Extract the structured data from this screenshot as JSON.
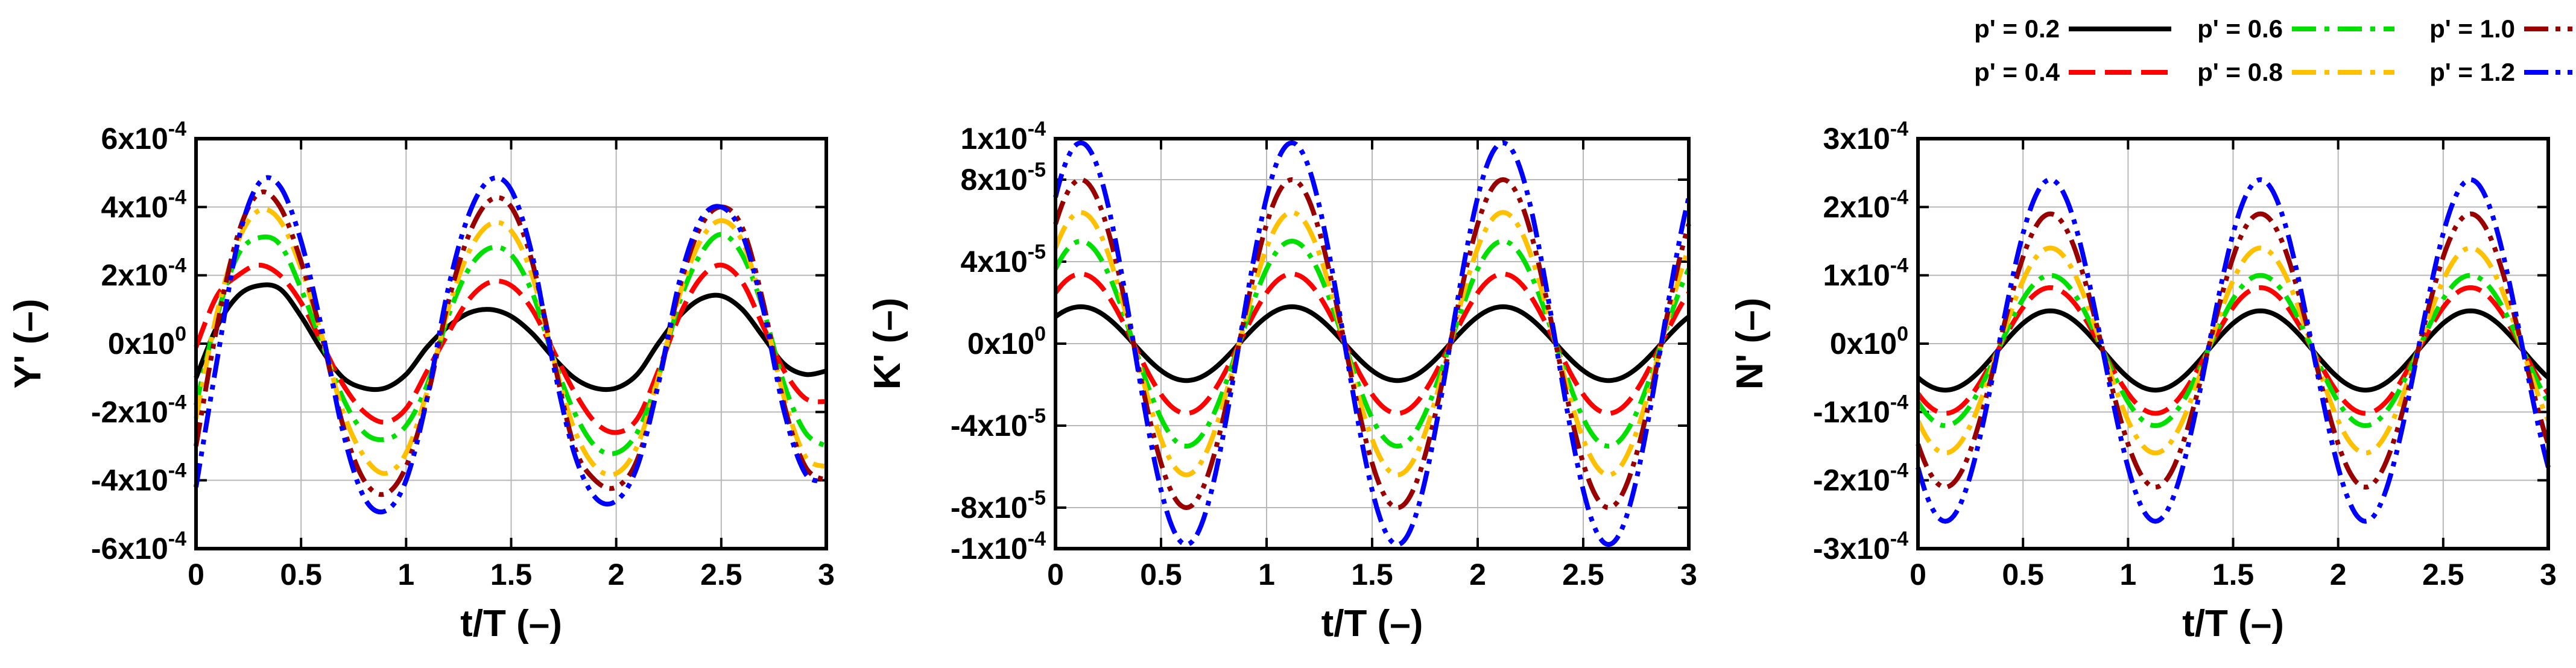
{
  "legend": {
    "placement": "top-right",
    "entries": [
      {
        "label": "p' = 0.2",
        "color": "#000000",
        "dash": "solid"
      },
      {
        "label": "p' = 0.4",
        "color": "#ff0000",
        "dash": "dash"
      },
      {
        "label": "p' = 0.6",
        "color": "#00e000",
        "dash": "dashdot"
      },
      {
        "label": "p' = 0.8",
        "color": "#ffc000",
        "dash": "dashdot"
      },
      {
        "label": "p' = 1.0",
        "color": "#990000",
        "dash": "dashdotdot"
      },
      {
        "label": "p' = 1.2",
        "color": "#0000ff",
        "dash": "dashdotdot"
      }
    ]
  },
  "chart_data": [
    {
      "type": "line",
      "xlabel": "t/T (–)",
      "ylabel": "Y' (–)",
      "xlim": [
        0,
        3
      ],
      "ylim": [
        -0.0006,
        0.0006
      ],
      "grid": true,
      "x_ticks": [
        0,
        0.5,
        1,
        1.5,
        2,
        2.5,
        3
      ],
      "x_tick_labels": [
        "0",
        "0.5",
        "1",
        "1.5",
        "2",
        "2.5",
        "3"
      ],
      "y_ticks": [
        {
          "value": -0.0006,
          "mantissa": "-6x10",
          "exp": "-4"
        },
        {
          "value": -0.0004,
          "mantissa": "-4x10",
          "exp": "-4"
        },
        {
          "value": -0.0002,
          "mantissa": "-2x10",
          "exp": "-4"
        },
        {
          "value": 0,
          "mantissa": "0x10",
          "exp": "0"
        },
        {
          "value": 0.0002,
          "mantissa": "2x10",
          "exp": "-4"
        },
        {
          "value": 0.0004,
          "mantissa": "4x10",
          "exp": "-4"
        },
        {
          "value": 0.0006,
          "mantissa": "6x10",
          "exp": "-4"
        }
      ],
      "x": [
        0,
        0.1,
        0.2,
        0.3,
        0.4,
        0.5,
        0.6,
        0.7,
        0.8,
        0.9,
        1.0,
        1.1,
        1.2,
        1.3,
        1.4,
        1.5,
        1.6,
        1.7,
        1.8,
        1.9,
        2.0,
        2.1,
        2.2,
        2.3,
        2.4,
        2.5,
        2.6,
        2.7,
        2.8,
        2.9,
        3.0
      ],
      "series": [
        {
          "name": "p' = 0.2",
          "values": [
            -0.0001,
            5e-05,
            0.00014,
            0.00017,
            0.00016,
            8e-05,
            -2e-05,
            -0.0001,
            -0.00013,
            -0.00013,
            -9e-05,
            -1e-05,
            5e-05,
            9e-05,
            0.0001,
            8e-05,
            3e-05,
            -4e-05,
            -0.0001,
            -0.00013,
            -0.00013,
            -9e-05,
            0.0,
            8e-05,
            0.00013,
            0.00014,
            0.0001,
            2e-05,
            -6e-05,
            -9e-05,
            -8e-05
          ]
        },
        {
          "name": "p' = 0.4",
          "values": [
            -1e-05,
            0.00014,
            0.0002,
            0.00023,
            0.0002,
            0.00012,
            0.0,
            -0.00012,
            -0.0002,
            -0.00023,
            -0.00019,
            -8e-05,
            3e-05,
            0.00013,
            0.00018,
            0.00017,
            0.0001,
            -2e-05,
            -0.00014,
            -0.00023,
            -0.00026,
            -0.00022,
            -8e-05,
            8e-05,
            0.00019,
            0.00023,
            0.00018,
            5e-05,
            -8e-05,
            -0.00016,
            -0.00017
          ]
        },
        {
          "name": "p' = 0.6",
          "values": [
            -0.00018,
            8e-05,
            0.00026,
            0.00031,
            0.00029,
            0.00016,
            0.0,
            -0.00016,
            -0.00026,
            -0.00028,
            -0.00024,
            -0.00012,
            8e-05,
            0.00022,
            0.00028,
            0.00026,
            0.00015,
            -4e-05,
            -0.0002,
            -0.0003,
            -0.00032,
            -0.00026,
            -0.0001,
            0.00012,
            0.00026,
            0.00032,
            0.00026,
            0.0001,
            -0.00012,
            -0.00026,
            -0.0003
          ]
        },
        {
          "name": "p' = 0.8",
          "values": [
            -0.00022,
            9e-05,
            0.0003,
            0.00039,
            0.00036,
            0.00022,
            2e-05,
            -0.0002,
            -0.00033,
            -0.00038,
            -0.00032,
            -0.00014,
            0.0001,
            0.00027,
            0.00035,
            0.00033,
            0.0002,
            -4e-05,
            -0.00025,
            -0.00036,
            -0.00038,
            -0.0003,
            -0.0001,
            0.00014,
            0.0003,
            0.00036,
            0.0003,
            0.0001,
            -0.00016,
            -0.00033,
            -0.00036
          ]
        },
        {
          "name": "p' = 1.0",
          "values": [
            -0.0003,
            5e-05,
            0.00032,
            0.00044,
            0.0004,
            0.00024,
            2e-05,
            -0.00024,
            -0.0004,
            -0.00044,
            -0.00036,
            -0.00016,
            0.00012,
            0.00032,
            0.00042,
            0.0004,
            0.00024,
            -4e-05,
            -0.0003,
            -0.0004,
            -0.00042,
            -0.00034,
            -0.00012,
            0.00016,
            0.00034,
            0.0004,
            0.00034,
            0.00012,
            -0.00018,
            -0.00036,
            -0.0004
          ]
        },
        {
          "name": "p' = 1.2",
          "values": [
            -0.00042,
            -5e-05,
            0.0003,
            0.00047,
            0.00046,
            0.0003,
            4e-05,
            -0.00026,
            -0.00045,
            -0.00049,
            -0.0004,
            -0.00016,
            0.00016,
            0.00038,
            0.00048,
            0.00045,
            0.00026,
            -6e-05,
            -0.00032,
            -0.00045,
            -0.00046,
            -0.00036,
            -0.00012,
            0.00018,
            0.00036,
            0.0004,
            0.00032,
            0.0001,
            -0.0002,
            -0.00038,
            -0.0004
          ]
        }
      ]
    },
    {
      "type": "line",
      "xlabel": "t/T (–)",
      "ylabel": "K' (–)",
      "xlim": [
        0,
        3
      ],
      "ylim": [
        -0.0001,
        0.0001
      ],
      "grid": true,
      "x_ticks": [
        0,
        0.5,
        1,
        1.5,
        2,
        2.5,
        3
      ],
      "x_tick_labels": [
        "0",
        "0.5",
        "1",
        "1.5",
        "2",
        "2.5",
        "3"
      ],
      "y_ticks": [
        {
          "value": -0.0001,
          "mantissa": "-1x10",
          "exp": "-4"
        },
        {
          "value": -8e-05,
          "mantissa": "-8x10",
          "exp": "-5"
        },
        {
          "value": -4e-05,
          "mantissa": "-4x10",
          "exp": "-5"
        },
        {
          "value": 0,
          "mantissa": "0x10",
          "exp": "0"
        },
        {
          "value": 4e-05,
          "mantissa": "4x10",
          "exp": "-5"
        },
        {
          "value": 8e-05,
          "mantissa": "8x10",
          "exp": "-5"
        },
        {
          "value": 0.0001,
          "mantissa": "1x10",
          "exp": "-4"
        }
      ],
      "amplitudes": [
        1.8e-05,
        3.4e-05,
        5e-05,
        6.4e-05,
        8e-05,
        9.8e-05
      ],
      "phase_shift": 0.12,
      "series": [
        {
          "name": "p' = 0.2",
          "amplitude": 1.8e-05
        },
        {
          "name": "p' = 0.4",
          "amplitude": 3.4e-05
        },
        {
          "name": "p' = 0.6",
          "amplitude": 5e-05
        },
        {
          "name": "p' = 0.8",
          "amplitude": 6.4e-05
        },
        {
          "name": "p' = 1.0",
          "amplitude": 8e-05
        },
        {
          "name": "p' = 1.2",
          "amplitude": 9.8e-05
        }
      ]
    },
    {
      "type": "line",
      "xlabel": "t/T (–)",
      "ylabel": "N' (–)",
      "xlim": [
        0,
        3
      ],
      "ylim": [
        -0.0003,
        0.0003
      ],
      "grid": true,
      "x_ticks": [
        0,
        0.5,
        1,
        1.5,
        2,
        2.5,
        3
      ],
      "x_tick_labels": [
        "0",
        "0.5",
        "1",
        "1.5",
        "2",
        "2.5",
        "3"
      ],
      "y_ticks": [
        {
          "value": -0.0003,
          "mantissa": "-3x10",
          "exp": "-4"
        },
        {
          "value": -0.0002,
          "mantissa": "-2x10",
          "exp": "-4"
        },
        {
          "value": -0.0001,
          "mantissa": "-1x10",
          "exp": "-4"
        },
        {
          "value": 0,
          "mantissa": "0x10",
          "exp": "0"
        },
        {
          "value": 0.0001,
          "mantissa": "1x10",
          "exp": "-4"
        },
        {
          "value": 0.0002,
          "mantissa": "2x10",
          "exp": "-4"
        },
        {
          "value": 0.0003,
          "mantissa": "3x10",
          "exp": "-4"
        }
      ],
      "offset": -1e-05,
      "phase_shift": 0.63,
      "series": [
        {
          "name": "p' = 0.2",
          "amplitude": 5.8e-05
        },
        {
          "name": "p' = 0.4",
          "amplitude": 9.2e-05
        },
        {
          "name": "p' = 0.6",
          "amplitude": 0.00011
        },
        {
          "name": "p' = 0.8",
          "amplitude": 0.00015
        },
        {
          "name": "p' = 1.0",
          "amplitude": 0.0002
        },
        {
          "name": "p' = 1.2",
          "amplitude": 0.00025
        }
      ]
    }
  ]
}
